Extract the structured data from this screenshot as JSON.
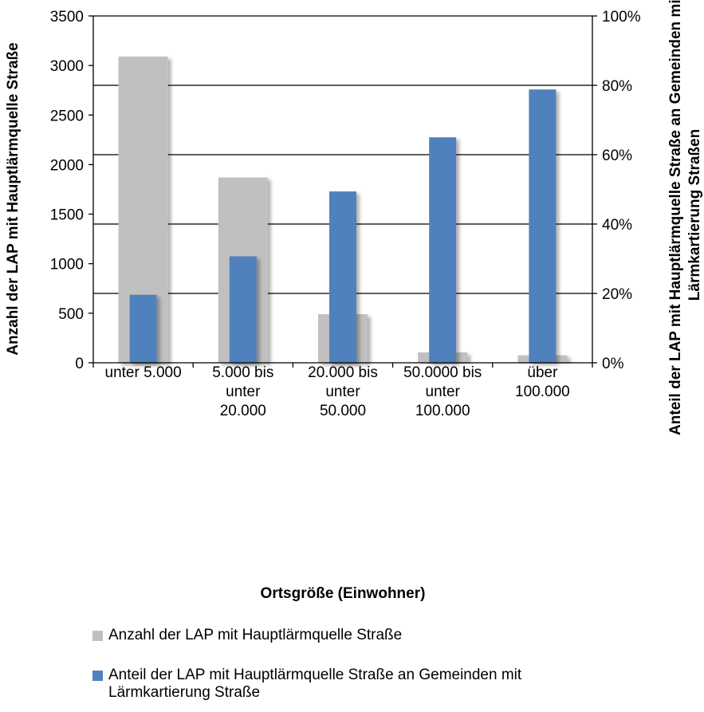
{
  "chart_data": {
    "type": "bar",
    "categories": [
      [
        "unter 5.000"
      ],
      [
        "5.000 bis",
        "unter",
        "20.000"
      ],
      [
        "20.000 bis",
        "unter",
        "50.000"
      ],
      [
        "50.0000 bis",
        "unter",
        "100.000"
      ],
      [
        "über",
        "100.000"
      ]
    ],
    "series": [
      {
        "name": "Anzahl der LAP mit Hauptlärmquelle Straße",
        "axis": "left",
        "color": "#c0c0c0",
        "values": [
          3090,
          1870,
          490,
          105,
          75
        ]
      },
      {
        "name": "Anteil der LAP mit Hauptlärmquelle Straße an Gemeinden mit Lärmkartierung Straße",
        "legend_lines": [
          "Anteil der LAP mit Hauptlärmquelle Straße an Gemeinden mit",
          "Lärmkartierung Straße"
        ],
        "axis": "right",
        "color": "#4f81bd",
        "values": [
          0.196,
          0.307,
          0.494,
          0.65,
          0.788
        ]
      }
    ],
    "xlabel": "Ortsgröße (Einwohner)",
    "ylabel_left": "Anzahl der LAP mit Hauptlärmquelle Straße",
    "ylabel_right_lines": [
      "Anteil der LAP mit Hauptlärmquelle Straße an Gemeinden mit",
      "Lärmkartierung Straßen"
    ],
    "ylim_left": [
      0,
      3500
    ],
    "ylim_right": [
      0,
      1
    ],
    "left_ticks": [
      "0",
      "500",
      "1000",
      "1500",
      "2000",
      "2500",
      "3000",
      "3500"
    ],
    "right_ticks": [
      "0%",
      "20%",
      "40%",
      "60%",
      "80%",
      "100%"
    ],
    "gridlines": "horizontal at right-axis ticks",
    "legend_position": "bottom"
  }
}
